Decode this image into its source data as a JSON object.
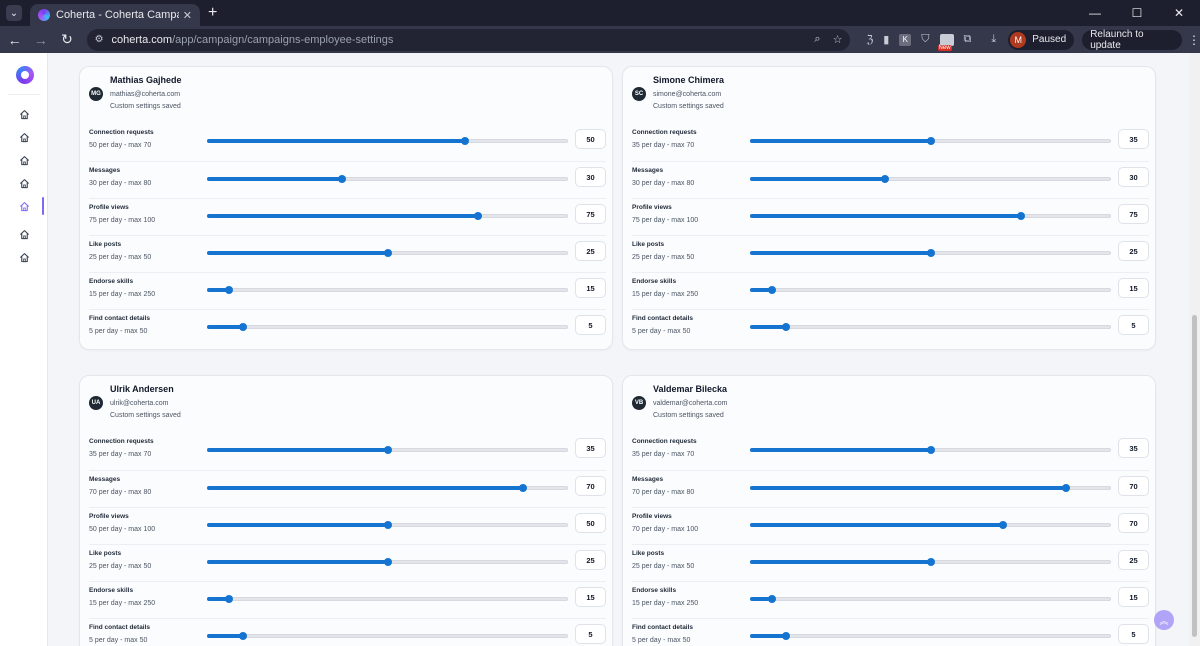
{
  "browser": {
    "tab_title": "Coherta - Coherta Campaigns",
    "url_host": "coherta.com",
    "url_path": "/app/campaign/campaigns-employee-settings",
    "profile_initial": "M",
    "profile_status": "Paused",
    "relaunch_label": "Relaunch to update",
    "new_badge": "New",
    "ext_k_label": "K"
  },
  "sidebar": {
    "items": [
      {
        "icon": "home-icon"
      },
      {
        "icon": "home-icon"
      },
      {
        "icon": "home-icon"
      },
      {
        "icon": "home-icon"
      },
      {
        "icon": "home-icon",
        "active": true
      },
      {
        "icon": "home-icon"
      },
      {
        "icon": "home-icon"
      }
    ],
    "active_color": "#7c6cf5"
  },
  "accent_color": "#1674d1",
  "employees": [
    {
      "initials": "MG",
      "name": "Mathias Gajhede",
      "email": "mathias@coherta.com",
      "status": "Custom settings saved",
      "settings": [
        {
          "label": "Connection requests",
          "sub": "50 per day - max 70",
          "value": 50,
          "max": 70
        },
        {
          "label": "Messages",
          "sub": "30 per day - max 80",
          "value": 30,
          "max": 80
        },
        {
          "label": "Profile views",
          "sub": "75 per day - max 100",
          "value": 75,
          "max": 100
        },
        {
          "label": "Like posts",
          "sub": "25 per day - max 50",
          "value": 25,
          "max": 50
        },
        {
          "label": "Endorse skills",
          "sub": "15 per day - max 250",
          "value": 15,
          "max": 250
        },
        {
          "label": "Find contact details",
          "sub": "5 per day - max 50",
          "value": 5,
          "max": 50
        }
      ]
    },
    {
      "initials": "SC",
      "name": "Simone Chimera",
      "email": "simone@coherta.com",
      "status": "Custom settings saved",
      "settings": [
        {
          "label": "Connection requests",
          "sub": "35 per day - max 70",
          "value": 35,
          "max": 70
        },
        {
          "label": "Messages",
          "sub": "30 per day - max 80",
          "value": 30,
          "max": 80
        },
        {
          "label": "Profile views",
          "sub": "75 per day - max 100",
          "value": 75,
          "max": 100
        },
        {
          "label": "Like posts",
          "sub": "25 per day - max 50",
          "value": 25,
          "max": 50
        },
        {
          "label": "Endorse skills",
          "sub": "15 per day - max 250",
          "value": 15,
          "max": 250
        },
        {
          "label": "Find contact details",
          "sub": "5 per day - max 50",
          "value": 5,
          "max": 50
        }
      ]
    },
    {
      "initials": "UA",
      "name": "Ulrik Andersen",
      "email": "ulrik@coherta.com",
      "status": "Custom settings saved",
      "settings": [
        {
          "label": "Connection requests",
          "sub": "35 per day - max 70",
          "value": 35,
          "max": 70
        },
        {
          "label": "Messages",
          "sub": "70 per day - max 80",
          "value": 70,
          "max": 80
        },
        {
          "label": "Profile views",
          "sub": "50 per day - max 100",
          "value": 50,
          "max": 100
        },
        {
          "label": "Like posts",
          "sub": "25 per day - max 50",
          "value": 25,
          "max": 50
        },
        {
          "label": "Endorse skills",
          "sub": "15 per day - max 250",
          "value": 15,
          "max": 250
        },
        {
          "label": "Find contact details",
          "sub": "5 per day - max 50",
          "value": 5,
          "max": 50
        }
      ]
    },
    {
      "initials": "VB",
      "name": "Valdemar Bilecka",
      "email": "valdemar@coherta.com",
      "status": "Custom settings saved",
      "settings": [
        {
          "label": "Connection requests",
          "sub": "35 per day - max 70",
          "value": 35,
          "max": 70
        },
        {
          "label": "Messages",
          "sub": "70 per day - max 80",
          "value": 70,
          "max": 80
        },
        {
          "label": "Profile views",
          "sub": "70 per day - max 100",
          "value": 70,
          "max": 100
        },
        {
          "label": "Like posts",
          "sub": "25 per day - max 50",
          "value": 25,
          "max": 50
        },
        {
          "label": "Endorse skills",
          "sub": "15 per day - max 250",
          "value": 15,
          "max": 250
        },
        {
          "label": "Find contact details",
          "sub": "5 per day - max 50",
          "value": 5,
          "max": 50
        }
      ]
    }
  ]
}
